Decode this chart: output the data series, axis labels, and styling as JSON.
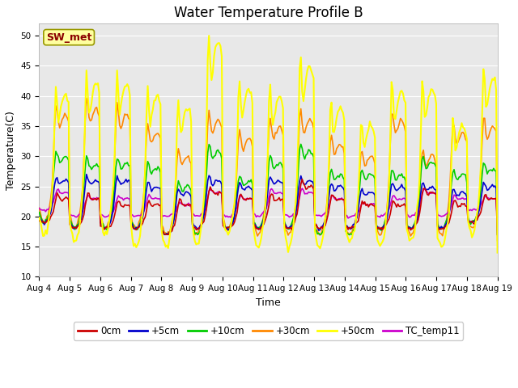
{
  "title": "Water Temperature Profile B",
  "xlabel": "Time",
  "ylabel": "Temperature(C)",
  "ylim": [
    10,
    52
  ],
  "yticks": [
    10,
    15,
    20,
    25,
    30,
    35,
    40,
    45,
    50
  ],
  "annotation_text": "SW_met",
  "annotation_color": "#8B0000",
  "annotation_bg": "#FFFFA0",
  "annotation_edge": "#999900",
  "series": {
    "0cm": {
      "color": "#CC0000",
      "lw": 1.2
    },
    "+5cm": {
      "color": "#0000CC",
      "lw": 1.2
    },
    "+10cm": {
      "color": "#00CC00",
      "lw": 1.2
    },
    "+30cm": {
      "color": "#FF8800",
      "lw": 1.2
    },
    "+50cm": {
      "color": "#FFFF00",
      "lw": 1.5
    },
    "TC_temp11": {
      "color": "#CC00CC",
      "lw": 1.2
    }
  },
  "plot_bg": "#E8E8E8",
  "fig_bg": "#FFFFFF",
  "grid_color": "#FFFFFF",
  "title_fontsize": 12,
  "tick_fontsize": 7.5,
  "label_fontsize": 9,
  "legend_fontsize": 8.5,
  "n_days": 15,
  "start_day": 4,
  "start_month": "Aug"
}
